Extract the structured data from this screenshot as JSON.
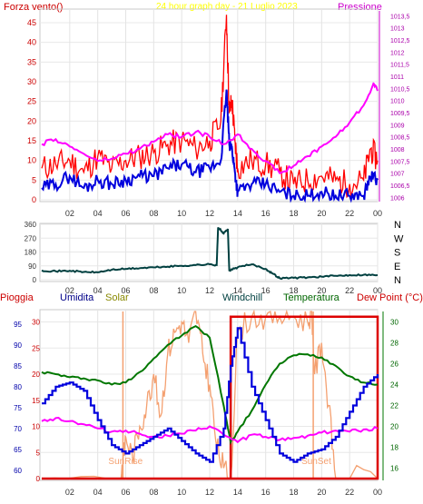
{
  "header": {
    "left_label": "Forza vento()",
    "title": "24 hour graph day - 21 Luglio 2023",
    "right_label": "Pressione"
  },
  "colors": {
    "wind_red": "#ff0000",
    "wind_blue": "#0000dd",
    "pressure": "#ff00ff",
    "title": "#ffff00",
    "direction": "#004040",
    "humidity": "#0000dd",
    "temperature": "#007700",
    "solar": "#f4a070",
    "rain_box": "#dd0000",
    "windchill": "#004040"
  },
  "chart_data": [
    {
      "type": "line",
      "name": "wind-pressure",
      "x_ticks": [
        "02",
        "04",
        "06",
        "08",
        "10",
        "12",
        "14",
        "16",
        "18",
        "20",
        "22",
        "00"
      ],
      "y_left_ticks": [
        "0",
        "5",
        "10",
        "15",
        "20",
        "25",
        "30",
        "35",
        "40",
        "45"
      ],
      "y_left_range": [
        0,
        48
      ],
      "y_right_ticks": [
        "1006",
        "1006,5",
        "1007",
        "1007,5",
        "1008",
        "1008,5",
        "1009",
        "1009,5",
        "1010",
        "1010,5",
        "1011",
        "1011,5",
        "1012",
        "1012,5",
        "1013",
        "1013,5"
      ],
      "y_right_range": [
        1005.9,
        1013.7
      ],
      "series": [
        {
          "key": "gust",
          "x": [
            0,
            1,
            2,
            3,
            4,
            5,
            6,
            7,
            8,
            9,
            10,
            11,
            12,
            12.8,
            13.2,
            13.4,
            13.6,
            13.8,
            14,
            15,
            16,
            17,
            18,
            19,
            20,
            21,
            22,
            23,
            23.5,
            24
          ],
          "values": [
            8,
            9,
            10,
            7,
            11,
            8,
            10,
            11,
            12,
            14,
            15,
            13,
            15,
            20,
            47,
            22,
            25,
            15,
            8,
            10,
            9,
            7,
            4,
            5,
            6,
            5,
            4,
            5,
            13,
            10
          ]
        },
        {
          "key": "wind",
          "x": [
            0,
            1,
            2,
            3,
            4,
            5,
            6,
            7,
            8,
            9,
            10,
            11,
            12,
            12.8,
            13.2,
            13.4,
            13.6,
            13.8,
            14,
            15,
            16,
            17,
            18,
            19,
            20,
            21,
            22,
            23,
            23.5,
            24
          ],
          "values": [
            3,
            4,
            6,
            3,
            5,
            4,
            5,
            6,
            6,
            8,
            9,
            7,
            8,
            10,
            28,
            14,
            13,
            7,
            2,
            4,
            4,
            2,
            1,
            1,
            2,
            1,
            1,
            1,
            6,
            5
          ]
        },
        {
          "key": "pressure",
          "x": [
            0,
            1,
            2,
            3,
            4,
            5,
            6,
            7,
            8,
            9,
            10,
            11,
            12,
            13,
            14,
            15,
            16,
            17,
            18,
            19,
            20,
            21,
            22,
            23,
            23.7,
            24
          ],
          "values": [
            1008.2,
            1008.4,
            1008.1,
            1007.8,
            1007.5,
            1007.6,
            1007.8,
            1008.0,
            1008.3,
            1008.6,
            1008.5,
            1008.7,
            1008.5,
            1008.2,
            1008.6,
            1008.0,
            1007.5,
            1007.0,
            1007.3,
            1007.7,
            1008.1,
            1008.5,
            1009.1,
            1009.8,
            1010.7,
            1010.4
          ]
        }
      ]
    },
    {
      "type": "line",
      "name": "wind-direction",
      "x_ticks": [
        "02",
        "04",
        "06",
        "08",
        "10",
        "12",
        "14",
        "16",
        "18",
        "20",
        "22",
        "00"
      ],
      "y_left_ticks": [
        "0",
        "90",
        "180",
        "270",
        "360"
      ],
      "y_left_range": [
        0,
        360
      ],
      "y_right_ticks": [
        "N",
        "W",
        "S",
        "E",
        "N"
      ],
      "series": [
        {
          "key": "direction",
          "x": [
            0,
            1,
            2,
            3,
            4,
            5,
            6,
            7,
            8,
            9,
            10,
            11,
            12,
            12.5,
            12.6,
            13,
            13.3,
            13.4,
            14,
            15,
            16,
            16.5,
            17,
            18,
            19,
            20,
            21,
            22,
            23,
            24
          ],
          "values": [
            60,
            55,
            58,
            50,
            48,
            65,
            70,
            75,
            80,
            85,
            90,
            95,
            100,
            95,
            340,
            300,
            330,
            60,
            80,
            100,
            70,
            40,
            10,
            12,
            15,
            20,
            25,
            30,
            32,
            30
          ]
        }
      ]
    },
    {
      "type": "line",
      "name": "weather",
      "legend": [
        "Pioggia",
        "Umidita",
        "Solar",
        "Windchill",
        "Temperatura",
        "Dew Point (°C)"
      ],
      "x_ticks": [
        "02",
        "04",
        "06",
        "08",
        "10",
        "12",
        "14",
        "16",
        "18",
        "20",
        "22",
        "00"
      ],
      "y_rain_ticks": [
        "0",
        "5",
        "10",
        "15",
        "20",
        "25",
        "30"
      ],
      "y_rain_range": [
        0,
        32
      ],
      "y_hum_ticks": [
        "60",
        "65",
        "70",
        "75",
        "80",
        "85",
        "90",
        "95"
      ],
      "y_hum_range": [
        58,
        98
      ],
      "y_temp_ticks": [
        "16",
        "18",
        "20",
        "22",
        "24",
        "26",
        "28",
        "30"
      ],
      "y_temp_range": [
        15,
        31
      ],
      "annotations": [
        "SunRise",
        "SunSet"
      ],
      "sunrise_x": 5.8,
      "sunset_x": 19.4,
      "rain_box": {
        "x_start": 13.5,
        "x_end": 24,
        "value": 31
      },
      "series": [
        {
          "key": "humidity",
          "x": [
            0,
            1,
            2,
            3,
            4,
            5,
            6,
            7,
            8,
            9,
            10,
            11,
            12,
            13,
            13.5,
            14,
            15,
            16,
            17,
            18,
            19,
            20,
            21,
            22,
            23,
            24
          ],
          "values": [
            76,
            80,
            81,
            79,
            72,
            66,
            64,
            66,
            68,
            70,
            67,
            64,
            62,
            70,
            85,
            94,
            80,
            72,
            64,
            62,
            64,
            65,
            68,
            74,
            80,
            83
          ]
        },
        {
          "key": "temperature",
          "x": [
            0,
            1,
            2,
            3,
            4,
            5,
            6,
            7,
            8,
            9,
            10,
            11,
            12,
            13,
            13.5,
            14,
            15,
            16,
            17,
            18,
            19,
            20,
            21,
            22,
            23,
            24
          ],
          "values": [
            25.2,
            25,
            24.7,
            24.6,
            24.4,
            24.0,
            24.2,
            25.2,
            26.5,
            27.8,
            28.7,
            29.6,
            28.5,
            22,
            18.5,
            19.5,
            21.5,
            24.0,
            26,
            26.8,
            26.9,
            26.6,
            25.8,
            24.8,
            24.2,
            24.0
          ]
        },
        {
          "key": "dewpoint",
          "x": [
            0,
            1,
            2,
            3,
            4,
            5,
            6,
            7,
            8,
            9,
            10,
            11,
            12,
            13,
            14,
            15,
            16,
            17,
            18,
            19,
            20,
            21,
            22,
            23,
            24
          ],
          "values": [
            20.5,
            20.8,
            20.5,
            20.2,
            19.8,
            19.5,
            19.6,
            19.3,
            19.0,
            19.1,
            19.3,
            19.6,
            20.0,
            19.2,
            18.5,
            19.2,
            19.0,
            18.7,
            18.9,
            19.1,
            19.4,
            19.6,
            19.5,
            19.7,
            19.8
          ]
        },
        {
          "key": "solar",
          "x": [
            0,
            5.6,
            5.8,
            6,
            6.5,
            7,
            7.5,
            8,
            8.5,
            9,
            9.5,
            10,
            10.5,
            11,
            11.5,
            12,
            12.5,
            13,
            13.5,
            14,
            15,
            16,
            17,
            18,
            19,
            19.3,
            19.5,
            20,
            20.5,
            21,
            24
          ],
          "values": [
            0,
            0,
            3,
            8,
            4,
            10,
            14,
            20,
            12,
            24,
            28,
            30,
            26,
            32,
            24,
            18,
            6,
            2,
            0,
            28,
            31,
            31,
            31,
            31,
            30,
            32,
            20,
            26,
            14,
            0,
            0
          ]
        }
      ]
    }
  ]
}
